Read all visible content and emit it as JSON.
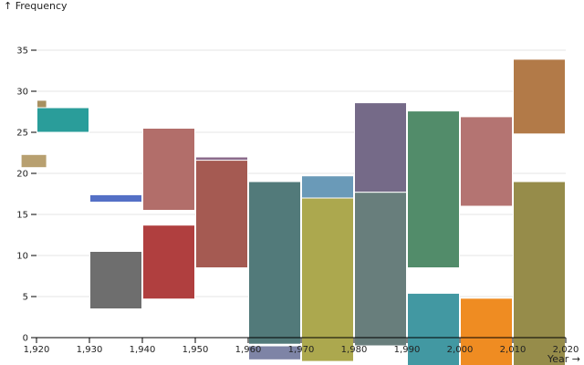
{
  "chart_data": {
    "type": "bar",
    "subtype": "floating-range-histogram",
    "ylabel": "↑ Frequency",
    "xlabel": "Year →",
    "xlim": [
      1920,
      2020
    ],
    "ylim": [
      0,
      35
    ],
    "x_ticks": [
      {
        "value": 1920,
        "label": "1,920"
      },
      {
        "value": 1930,
        "label": "1,930"
      },
      {
        "value": 1940,
        "label": "1,940"
      },
      {
        "value": 1950,
        "label": "1,950"
      },
      {
        "value": 1960,
        "label": "1,960"
      },
      {
        "value": 1970,
        "label": "1,970"
      },
      {
        "value": 1980,
        "label": "1,980"
      },
      {
        "value": 1990,
        "label": "1,990"
      },
      {
        "value": 2000,
        "label": "2,000"
      },
      {
        "value": 2010,
        "label": "2,010"
      },
      {
        "value": 2020,
        "label": "2,020"
      }
    ],
    "y_ticks": [
      0,
      5,
      10,
      15,
      20,
      25,
      30,
      35
    ],
    "grid": true,
    "bars": [
      {
        "x0": 1920,
        "x1": 1922,
        "y0": 27.2,
        "y1": 28.9,
        "color": "#a89060"
      },
      {
        "x0": 1920,
        "x1": 1930,
        "y0": 25.0,
        "y1": 28.0,
        "color": "#2a9d9a"
      },
      {
        "x0": 1930,
        "x1": 1940,
        "y0": 16.5,
        "y1": 17.4,
        "color": "#5470c6"
      },
      {
        "x0": 1930,
        "x1": 1940,
        "y0": 3.5,
        "y1": 10.5,
        "color": "#6e6e6e"
      },
      {
        "x0": 1940,
        "x1": 1950,
        "y0": 15.5,
        "y1": 25.5,
        "color": "#b26e6a"
      },
      {
        "x0": 1940,
        "x1": 1950,
        "y0": 4.7,
        "y1": 13.7,
        "color": "#b03f3f"
      },
      {
        "x0": 1950,
        "x1": 1960,
        "y0": 21.5,
        "y1": 22.0,
        "color": "#8a6a8a"
      },
      {
        "x0": 1950,
        "x1": 1960,
        "y0": 8.5,
        "y1": 21.6,
        "color": "#a55a52"
      },
      {
        "x0": 1960,
        "x1": 1970,
        "y0": -2.7,
        "y1": -1.0,
        "color": "#7e84a6"
      },
      {
        "x0": 1960,
        "x1": 1970,
        "y0": -0.8,
        "y1": 19.0,
        "color": "#527a7a"
      },
      {
        "x0": 1970,
        "x1": 1980,
        "y0": 17.0,
        "y1": 19.7,
        "color": "#6a9ab8"
      },
      {
        "x0": 1970,
        "x1": 1980,
        "y0": -2.9,
        "y1": 17.0,
        "color": "#aca84e"
      },
      {
        "x0": 1980,
        "x1": 1990,
        "y0": 17.7,
        "y1": 28.6,
        "color": "#756a88"
      },
      {
        "x0": 1980,
        "x1": 1990,
        "y0": -1.0,
        "y1": 17.7,
        "color": "#687e7c"
      },
      {
        "x0": 1990,
        "x1": 2000,
        "y0": 8.5,
        "y1": 27.6,
        "color": "#528c6a"
      },
      {
        "x0": 1990,
        "x1": 2000,
        "y0": -3.5,
        "y1": 5.4,
        "color": "#4298a2"
      },
      {
        "x0": 2000,
        "x1": 2010,
        "y0": 16.0,
        "y1": 26.9,
        "color": "#b47472"
      },
      {
        "x0": 2000,
        "x1": 2010,
        "y0": -3.5,
        "y1": 4.8,
        "color": "#ef8c22"
      },
      {
        "x0": 2010,
        "x1": 2020,
        "y0": 24.8,
        "y1": 33.9,
        "color": "#b27a48"
      },
      {
        "x0": 2010,
        "x1": 2020,
        "y0": -3.5,
        "y1": 19.0,
        "color": "#968c4a"
      },
      {
        "x0": 1917,
        "x1": 1922,
        "y0": 20.7,
        "y1": 22.3,
        "color": "#b8a070"
      }
    ]
  }
}
